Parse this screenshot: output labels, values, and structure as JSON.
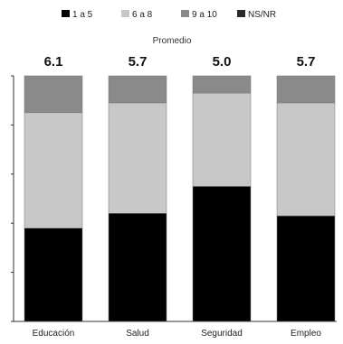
{
  "chart_data": {
    "type": "bar",
    "stacked": true,
    "legend_position": "top",
    "average_label": "Promedio",
    "categories": [
      "Educación",
      "Salud",
      "Seguridad",
      "Empleo"
    ],
    "averages": [
      "6.1",
      "5.7",
      "5.0",
      "5.7"
    ],
    "ylim": [
      0,
      100
    ],
    "series": [
      {
        "name": "1 a 5",
        "color": "#000000",
        "values": [
          38,
          44,
          55,
          43
        ]
      },
      {
        "name": "6 a 8",
        "color": "#c8c8c8",
        "values": [
          47,
          45,
          38,
          46
        ]
      },
      {
        "name": "9 a 10",
        "color": "#8a8a8a",
        "values": [
          15,
          11,
          7,
          11
        ]
      },
      {
        "name": "NS/NR",
        "color": "#2a2a2a",
        "values": [
          0,
          0,
          0,
          0
        ]
      }
    ]
  }
}
